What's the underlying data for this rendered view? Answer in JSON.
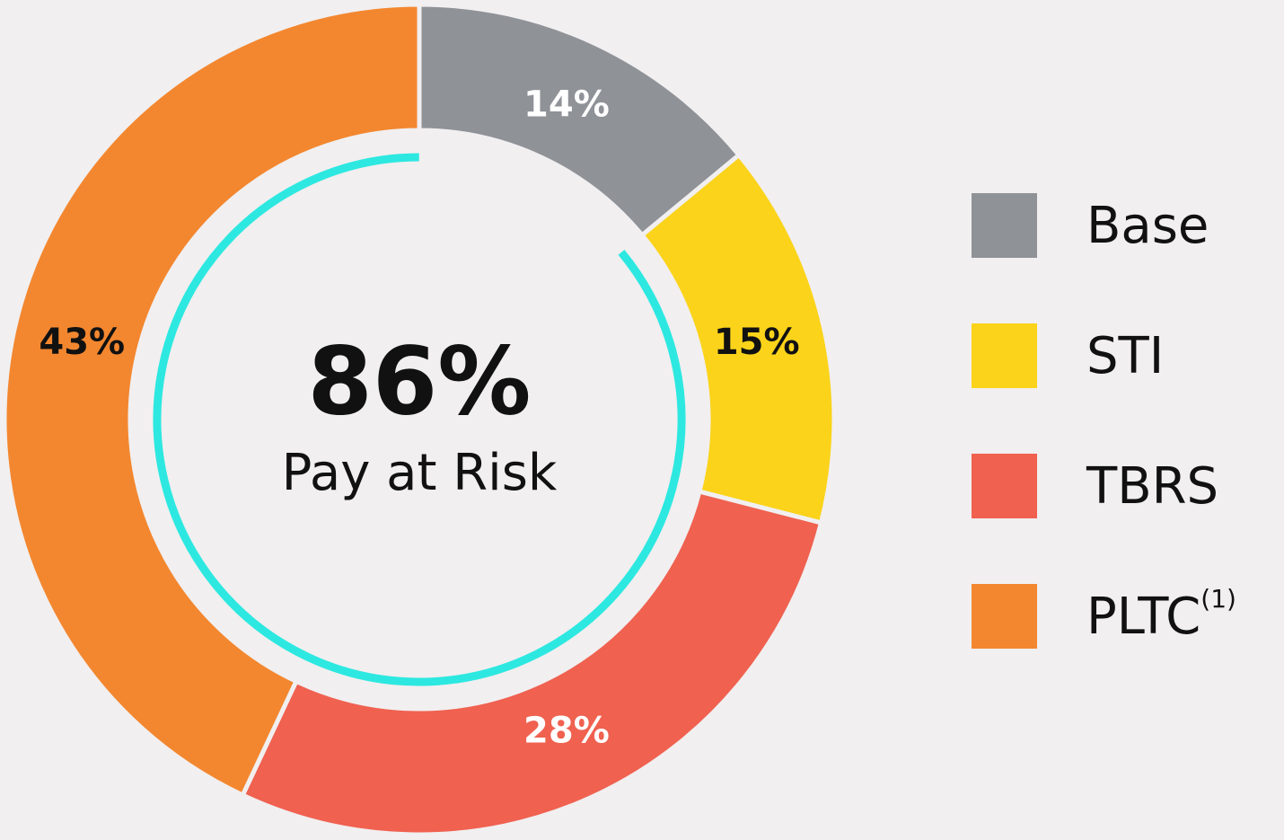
{
  "chart_data": {
    "type": "donut",
    "categories": [
      "Base",
      "STI",
      "TBRS",
      "PLTC"
    ],
    "legend_superscripts": [
      null,
      null,
      null,
      "(1)"
    ],
    "values": [
      14,
      15,
      28,
      43
    ],
    "value_labels": [
      "14%",
      "15%",
      "28%",
      "43%"
    ],
    "colors": [
      "#8f9297",
      "#fbd31a",
      "#f06150",
      "#f3872f"
    ],
    "value_label_colors": [
      "#ffffff",
      "#111111",
      "#ffffff",
      "#111111"
    ],
    "center": {
      "value": 86,
      "value_label": "86%",
      "label": "Pay at Risk",
      "color": "#2de8e0"
    },
    "legend": "right"
  }
}
